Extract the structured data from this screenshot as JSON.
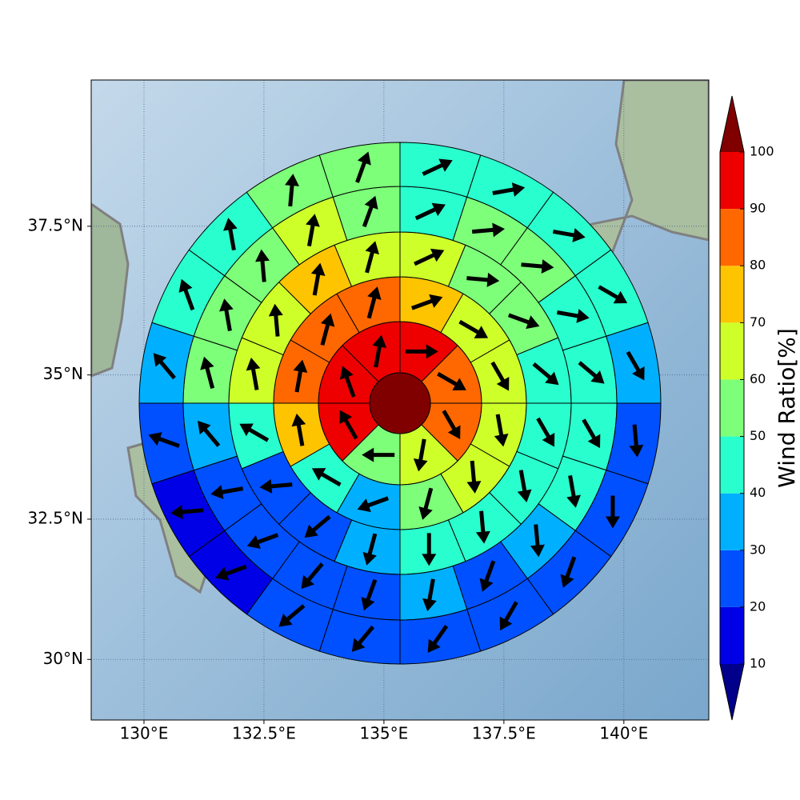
{
  "chart_data": {
    "type": "polar_sector_map",
    "xlim": [
      128.9,
      141.77
    ],
    "ylim": [
      28.9,
      39.88
    ],
    "projection": "mercator",
    "grid": true,
    "xticks": [
      {
        "value": 130,
        "label": "130°E"
      },
      {
        "value": 132.5,
        "label": "132.5°E"
      },
      {
        "value": 135,
        "label": "135°E"
      },
      {
        "value": 137.5,
        "label": "137.5°E"
      },
      {
        "value": 140,
        "label": "140°E"
      }
    ],
    "yticks": [
      {
        "value": 30,
        "label": "30°N"
      },
      {
        "value": 32.5,
        "label": "32.5°N"
      },
      {
        "value": 35,
        "label": "35°N"
      },
      {
        "value": 37.5,
        "label": "37.5°N"
      }
    ],
    "center_value": 100,
    "rings": [
      {
        "values": [
          95,
          85,
          85,
          65,
          55,
          95,
          95,
          95
        ],
        "directions": [
          90,
          120,
          150,
          190,
          270,
          330,
          340,
          10
        ]
      },
      {
        "values": [
          75,
          65,
          65,
          65,
          65,
          55,
          35,
          45,
          75,
          85,
          85,
          85
        ],
        "directions": [
          70,
          120,
          150,
          170,
          175,
          195,
          250,
          300,
          350,
          10,
          15,
          15
        ]
      },
      {
        "values": [
          65,
          55,
          55,
          45,
          45,
          45,
          45,
          45,
          35,
          25,
          25,
          45,
          65,
          65,
          75,
          65
        ],
        "directions": [
          65,
          95,
          110,
          130,
          150,
          170,
          175,
          180,
          195,
          230,
          265,
          300,
          350,
          355,
          10,
          15
        ]
      },
      {
        "values": [
          45,
          55,
          55,
          45,
          45,
          45,
          45,
          35,
          25,
          35,
          25,
          25,
          25,
          25,
          35,
          55,
          55,
          55,
          65,
          55
        ],
        "directions": [
          65,
          85,
          95,
          100,
          130,
          150,
          170,
          175,
          200,
          190,
          200,
          220,
          250,
          260,
          320,
          345,
          350,
          355,
          10,
          20
        ]
      },
      {
        "values": [
          45,
          45,
          45,
          45,
          35,
          25,
          25,
          25,
          25,
          25,
          25,
          25,
          15,
          15,
          25,
          35,
          45,
          45,
          55,
          55
        ],
        "directions": [
          65,
          80,
          100,
          120,
          150,
          175,
          180,
          200,
          210,
          215,
          220,
          230,
          250,
          265,
          290,
          320,
          340,
          350,
          5,
          20
        ]
      }
    ],
    "colorbar": {
      "label": "Wind Ratio[%]",
      "ticks": [
        10,
        20,
        30,
        40,
        50,
        60,
        70,
        80,
        90,
        100
      ],
      "colors": [
        "#0000e6",
        "#0050ff",
        "#00b0ff",
        "#29ffce",
        "#7dff7a",
        "#ceff29",
        "#ffc400",
        "#ff6800",
        "#ee0000"
      ],
      "under_color": "#00008b",
      "over_color": "#800000"
    }
  }
}
